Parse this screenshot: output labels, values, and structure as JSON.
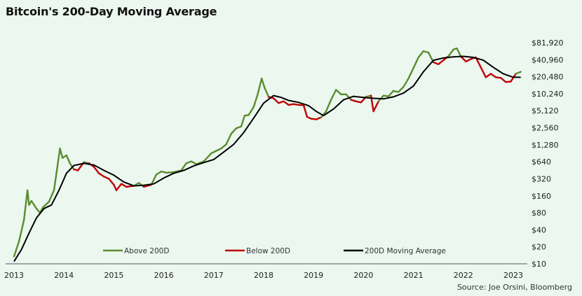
{
  "chart_data": {
    "type": "line",
    "title": "Bitcoin's 200-Day Moving Average",
    "source": "Source: Joe Orsini, Bloomberg",
    "y_scale": "log2",
    "ylim": [
      10,
      81920
    ],
    "xlim": [
      2013.0,
      2023.2
    ],
    "x_ticks": [
      {
        "value": 2013,
        "label": "2013"
      },
      {
        "value": 2014,
        "label": "2014"
      },
      {
        "value": 2015,
        "label": "2015"
      },
      {
        "value": 2016,
        "label": "2016"
      },
      {
        "value": 2017,
        "label": "2017"
      },
      {
        "value": 2018,
        "label": "2018"
      },
      {
        "value": 2019,
        "label": "2019"
      },
      {
        "value": 2020,
        "label": "2020"
      },
      {
        "value": 2021,
        "label": "2021"
      },
      {
        "value": 2022,
        "label": "2022"
      },
      {
        "value": 2023,
        "label": "2023"
      }
    ],
    "y_ticks": [
      {
        "value": 81920,
        "label": "$81,920"
      },
      {
        "value": 40960,
        "label": "$40,960"
      },
      {
        "value": 20480,
        "label": "$20,480"
      },
      {
        "value": 10240,
        "label": "$10,240"
      },
      {
        "value": 5120,
        "label": "$5,120"
      },
      {
        "value": 2560,
        "label": "$2,560"
      },
      {
        "value": 1280,
        "label": "$1,280"
      },
      {
        "value": 640,
        "label": "$640"
      },
      {
        "value": 320,
        "label": "$320"
      },
      {
        "value": 160,
        "label": "$160"
      },
      {
        "value": 80,
        "label": "$80"
      },
      {
        "value": 40,
        "label": "$40"
      },
      {
        "value": 20,
        "label": "$20"
      },
      {
        "value": 10,
        "label": "$10"
      }
    ],
    "legend": [
      {
        "key": "above",
        "label": "Above 200D",
        "color": "#5b8c2e"
      },
      {
        "key": "below",
        "label": "Below 200D",
        "color": "#c00000"
      },
      {
        "key": "ma",
        "label": "200D Moving Average",
        "color": "#000000"
      }
    ],
    "colors": {
      "above": "#5b8c2e",
      "below": "#c00000",
      "ma": "#000000"
    },
    "price_points": [
      [
        2013.0,
        13.5
      ],
      [
        2013.1,
        25
      ],
      [
        2013.2,
        60
      ],
      [
        2013.27,
        200
      ],
      [
        2013.3,
        110
      ],
      [
        2013.35,
        130
      ],
      [
        2013.45,
        95
      ],
      [
        2013.52,
        80
      ],
      [
        2013.58,
        100
      ],
      [
        2013.7,
        125
      ],
      [
        2013.8,
        200
      ],
      [
        2013.85,
        400
      ],
      [
        2013.92,
        1100
      ],
      [
        2013.97,
        750
      ],
      [
        2014.05,
        830
      ],
      [
        2014.12,
        600
      ],
      [
        2014.2,
        470
      ],
      [
        2014.28,
        450
      ],
      [
        2014.4,
        630
      ],
      [
        2014.5,
        600
      ],
      [
        2014.6,
        520
      ],
      [
        2014.7,
        400
      ],
      [
        2014.8,
        350
      ],
      [
        2014.9,
        320
      ],
      [
        2015.0,
        250
      ],
      [
        2015.05,
        200
      ],
      [
        2015.15,
        260
      ],
      [
        2015.25,
        230
      ],
      [
        2015.4,
        240
      ],
      [
        2015.5,
        270
      ],
      [
        2015.6,
        230
      ],
      [
        2015.75,
        250
      ],
      [
        2015.85,
        380
      ],
      [
        2015.95,
        430
      ],
      [
        2016.05,
        410
      ],
      [
        2016.2,
        420
      ],
      [
        2016.35,
        450
      ],
      [
        2016.45,
        600
      ],
      [
        2016.55,
        650
      ],
      [
        2016.65,
        580
      ],
      [
        2016.8,
        650
      ],
      [
        2016.95,
        900
      ],
      [
        2017.05,
        1000
      ],
      [
        2017.15,
        1100
      ],
      [
        2017.25,
        1300
      ],
      [
        2017.35,
        2000
      ],
      [
        2017.45,
        2500
      ],
      [
        2017.55,
        2700
      ],
      [
        2017.62,
        4200
      ],
      [
        2017.7,
        4300
      ],
      [
        2017.8,
        6000
      ],
      [
        2017.88,
        10000
      ],
      [
        2017.96,
        19000
      ],
      [
        2018.02,
        13000
      ],
      [
        2018.1,
        9000
      ],
      [
        2018.2,
        8500
      ],
      [
        2018.3,
        7000
      ],
      [
        2018.4,
        7500
      ],
      [
        2018.5,
        6500
      ],
      [
        2018.6,
        6700
      ],
      [
        2018.7,
        6500
      ],
      [
        2018.8,
        6400
      ],
      [
        2018.87,
        4000
      ],
      [
        2018.95,
        3700
      ],
      [
        2019.05,
        3600
      ],
      [
        2019.15,
        3900
      ],
      [
        2019.25,
        5000
      ],
      [
        2019.35,
        8000
      ],
      [
        2019.45,
        12000
      ],
      [
        2019.55,
        10000
      ],
      [
        2019.65,
        10000
      ],
      [
        2019.75,
        8000
      ],
      [
        2019.85,
        7500
      ],
      [
        2019.95,
        7200
      ],
      [
        2020.05,
        9000
      ],
      [
        2020.15,
        9500
      ],
      [
        2020.2,
        5000
      ],
      [
        2020.3,
        7500
      ],
      [
        2020.4,
        9500
      ],
      [
        2020.5,
        9200
      ],
      [
        2020.6,
        11500
      ],
      [
        2020.7,
        11000
      ],
      [
        2020.8,
        13500
      ],
      [
        2020.9,
        19000
      ],
      [
        2021.0,
        29000
      ],
      [
        2021.1,
        45000
      ],
      [
        2021.2,
        58000
      ],
      [
        2021.3,
        55000
      ],
      [
        2021.4,
        37000
      ],
      [
        2021.5,
        34000
      ],
      [
        2021.6,
        40000
      ],
      [
        2021.7,
        47000
      ],
      [
        2021.8,
        62000
      ],
      [
        2021.87,
        65000
      ],
      [
        2021.95,
        47000
      ],
      [
        2022.05,
        38000
      ],
      [
        2022.15,
        42000
      ],
      [
        2022.25,
        45000
      ],
      [
        2022.35,
        30000
      ],
      [
        2022.45,
        20000
      ],
      [
        2022.55,
        23000
      ],
      [
        2022.65,
        20000
      ],
      [
        2022.75,
        19500
      ],
      [
        2022.85,
        16500
      ],
      [
        2022.95,
        16800
      ],
      [
        2023.05,
        23000
      ],
      [
        2023.15,
        25000
      ]
    ],
    "ma_points": [
      [
        2013.0,
        11
      ],
      [
        2013.15,
        18
      ],
      [
        2013.3,
        35
      ],
      [
        2013.45,
        65
      ],
      [
        2013.6,
        95
      ],
      [
        2013.75,
        110
      ],
      [
        2013.9,
        200
      ],
      [
        2014.05,
        400
      ],
      [
        2014.2,
        550
      ],
      [
        2014.4,
        600
      ],
      [
        2014.6,
        560
      ],
      [
        2014.8,
        450
      ],
      [
        2015.0,
        370
      ],
      [
        2015.2,
        280
      ],
      [
        2015.4,
        240
      ],
      [
        2015.6,
        245
      ],
      [
        2015.8,
        260
      ],
      [
        2016.0,
        330
      ],
      [
        2016.2,
        400
      ],
      [
        2016.4,
        450
      ],
      [
        2016.6,
        540
      ],
      [
        2016.8,
        620
      ],
      [
        2017.0,
        700
      ],
      [
        2017.2,
        950
      ],
      [
        2017.4,
        1300
      ],
      [
        2017.6,
        2100
      ],
      [
        2017.8,
        3800
      ],
      [
        2018.0,
        7000
      ],
      [
        2018.2,
        9500
      ],
      [
        2018.35,
        8800
      ],
      [
        2018.5,
        7800
      ],
      [
        2018.7,
        7200
      ],
      [
        2018.9,
        6300
      ],
      [
        2019.05,
        5000
      ],
      [
        2019.2,
        4200
      ],
      [
        2019.4,
        5500
      ],
      [
        2019.6,
        8000
      ],
      [
        2019.8,
        9200
      ],
      [
        2020.0,
        8800
      ],
      [
        2020.2,
        8500
      ],
      [
        2020.4,
        8300
      ],
      [
        2020.6,
        9000
      ],
      [
        2020.8,
        10500
      ],
      [
        2021.0,
        14000
      ],
      [
        2021.2,
        25000
      ],
      [
        2021.4,
        40000
      ],
      [
        2021.6,
        44000
      ],
      [
        2021.8,
        46000
      ],
      [
        2022.0,
        47000
      ],
      [
        2022.2,
        45000
      ],
      [
        2022.4,
        40000
      ],
      [
        2022.6,
        30000
      ],
      [
        2022.8,
        23000
      ],
      [
        2023.0,
        20000
      ],
      [
        2023.15,
        20000
      ]
    ]
  }
}
